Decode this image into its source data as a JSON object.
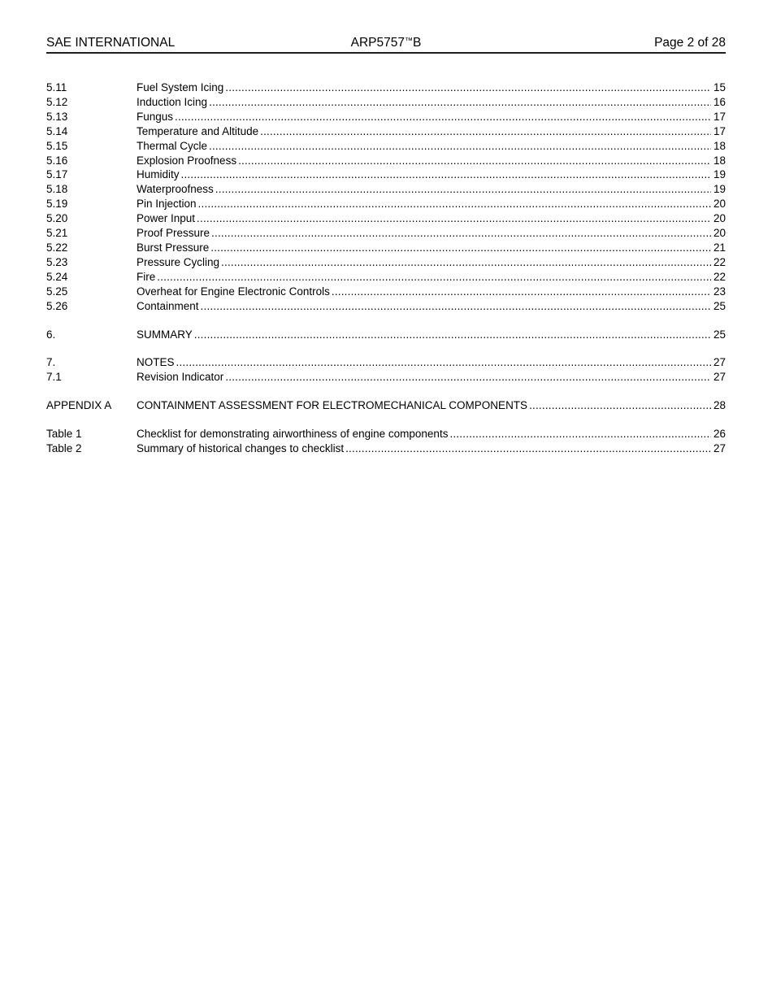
{
  "header": {
    "left": "SAE INTERNATIONAL",
    "center": "ARP5757™B",
    "right": "Page 2 of 28"
  },
  "toc": {
    "groups": [
      {
        "name": "section-5",
        "entries": [
          {
            "label": "5.11",
            "title": "Fuel System Icing",
            "page": "15"
          },
          {
            "label": "5.12",
            "title": "Induction Icing",
            "page": "16"
          },
          {
            "label": "5.13",
            "title": "Fungus",
            "page": "17"
          },
          {
            "label": "5.14",
            "title": "Temperature and Altitude",
            "page": "17"
          },
          {
            "label": "5.15",
            "title": "Thermal Cycle",
            "page": "18"
          },
          {
            "label": "5.16",
            "title": "Explosion Proofness",
            "page": "18"
          },
          {
            "label": "5.17",
            "title": "Humidity",
            "page": "19"
          },
          {
            "label": "5.18",
            "title": "Waterproofness",
            "page": "19"
          },
          {
            "label": "5.19",
            "title": "Pin Injection",
            "page": "20"
          },
          {
            "label": "5.20",
            "title": "Power Input",
            "page": "20"
          },
          {
            "label": "5.21",
            "title": "Proof Pressure",
            "page": "20"
          },
          {
            "label": "5.22",
            "title": "Burst Pressure",
            "page": "21"
          },
          {
            "label": "5.23",
            "title": "Pressure Cycling",
            "page": "22"
          },
          {
            "label": "5.24",
            "title": "Fire",
            "page": "22"
          },
          {
            "label": "5.25",
            "title": "Overheat for Engine Electronic Controls",
            "page": "23"
          },
          {
            "label": "5.26",
            "title": "Containment",
            "page": "25"
          }
        ]
      },
      {
        "name": "section-6",
        "entries": [
          {
            "label": "6.",
            "title": "SUMMARY",
            "page": "25"
          }
        ]
      },
      {
        "name": "section-7",
        "entries": [
          {
            "label": "7.",
            "title": "NOTES",
            "page": "27"
          },
          {
            "label": "7.1",
            "title": "Revision Indicator",
            "page": "27"
          }
        ]
      },
      {
        "name": "appendix",
        "entries": [
          {
            "label": "APPENDIX A",
            "title": "CONTAINMENT ASSESSMENT FOR ELECTROMECHANICAL COMPONENTS",
            "page": "28"
          }
        ]
      },
      {
        "name": "tables",
        "entries": [
          {
            "label": "Table 1",
            "title": "Checklist for demonstrating airworthiness of engine components",
            "page": "26"
          },
          {
            "label": "Table 2",
            "title": "Summary of historical changes to checklist",
            "page": "27"
          }
        ]
      }
    ]
  },
  "colors": {
    "text": "#000000",
    "background": "#ffffff",
    "header_rule": "#1f1f1f"
  }
}
